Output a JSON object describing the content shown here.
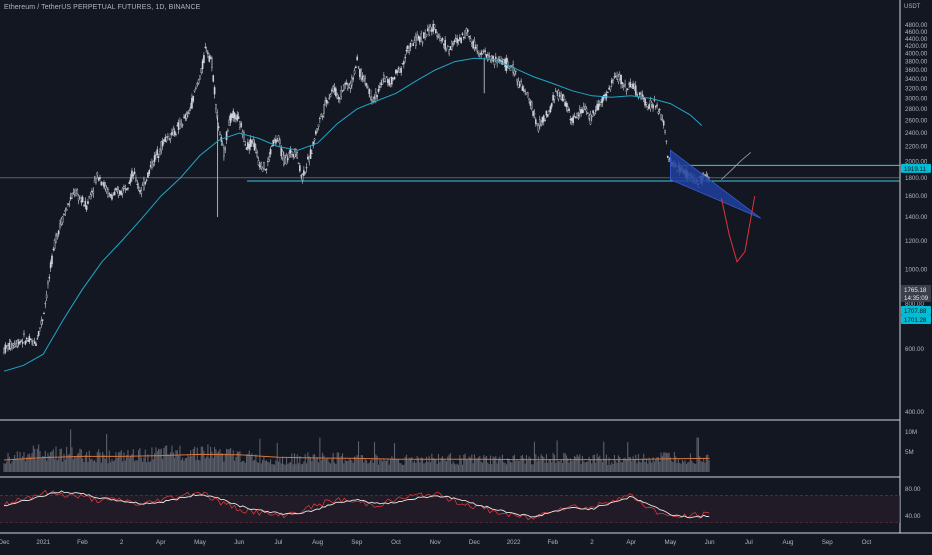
{
  "header": {
    "symbol_title": "Ethereum / TetherUS PERPETUAL FUTURES, 1D, BINANCE",
    "currency_unit": "USDT"
  },
  "colors": {
    "background": "#131722",
    "candle": "#d1d4dc",
    "moving_average": "#1ea7c8",
    "support_line": "#3ec6e8",
    "wedge_fill": "#1e3f9e",
    "projection_down": "#e0323c",
    "projection_up": "#9aa0ac",
    "volume_ma": "#d8753a",
    "rsi_red": "#ef3b3b",
    "rsi_white": "#e6e6e6",
    "rsi_band": "#7a3540",
    "axis_text": "#b2b5be",
    "tag_cyan": "#00bcd4",
    "tag_grey": "#3a3f4b"
  },
  "chart_data": [
    {
      "type": "line",
      "name": "price",
      "y_scale": "log",
      "ylim": [
        400,
        4900
      ],
      "price_ticks": [
        4800,
        4600,
        4400,
        4200,
        4000,
        3800,
        3600,
        3400,
        3200,
        3000,
        2800,
        2600,
        2400,
        2200,
        2000,
        1800,
        1600,
        1400,
        1200,
        1000,
        800,
        600,
        400
      ],
      "price_tick_labels": [
        "4800.00",
        "4600.00",
        "4400.00",
        "4200.00",
        "4000.00",
        "3800.00",
        "3600.00",
        "3400.00",
        "3200.00",
        "3000.00",
        "2800.00",
        "2600.00",
        "2400.00",
        "2200.00",
        "2000.00",
        "1800.00",
        "1600.00",
        "1400.00",
        "1200.00",
        "1000.00",
        "800.00",
        "600.00",
        "400.00"
      ],
      "time_labels": [
        "Dec",
        "2021",
        "Feb",
        "2",
        "Apr",
        "May",
        "Jun",
        "Jul",
        "Aug",
        "Sep",
        "Oct",
        "Nov",
        "Dec",
        "2022",
        "Feb",
        "2",
        "Apr",
        "May",
        "Jun",
        "Jul",
        "Aug",
        "Sep",
        "Oct"
      ],
      "time_label_months": [
        0,
        1,
        2,
        3,
        4,
        5,
        6,
        7,
        8,
        9,
        10,
        11,
        12,
        13,
        14,
        15,
        16,
        17,
        18,
        19,
        20,
        21,
        22
      ],
      "price_path": [
        [
          0.0,
          600
        ],
        [
          0.5,
          640
        ],
        [
          0.8,
          620
        ],
        [
          1.0,
          740
        ],
        [
          1.3,
          1200
        ],
        [
          1.5,
          1400
        ],
        [
          1.8,
          1650
        ],
        [
          2.1,
          1500
        ],
        [
          2.4,
          1850
        ],
        [
          2.7,
          1600
        ],
        [
          3.0,
          1650
        ],
        [
          3.3,
          1850
        ],
        [
          3.5,
          1650
        ],
        [
          3.8,
          2000
        ],
        [
          4.1,
          2300
        ],
        [
          4.4,
          2450
        ],
        [
          4.7,
          2700
        ],
        [
          4.9,
          3200
        ],
        [
          5.05,
          3600
        ],
        [
          5.15,
          4200
        ],
        [
          5.3,
          3800
        ],
        [
          5.45,
          2600
        ],
        [
          5.6,
          2100
        ],
        [
          5.75,
          2600
        ],
        [
          5.9,
          2700
        ],
        [
          6.05,
          2500
        ],
        [
          6.2,
          2200
        ],
        [
          6.35,
          2300
        ],
        [
          6.5,
          2000
        ],
        [
          6.7,
          1900
        ],
        [
          6.85,
          2250
        ],
        [
          7.0,
          2300
        ],
        [
          7.15,
          2000
        ],
        [
          7.3,
          2100
        ],
        [
          7.45,
          2150
        ],
        [
          7.6,
          1800
        ],
        [
          7.8,
          2050
        ],
        [
          8.0,
          2500
        ],
        [
          8.2,
          2900
        ],
        [
          8.4,
          3200
        ],
        [
          8.55,
          3000
        ],
        [
          8.7,
          3300
        ],
        [
          8.85,
          3250
        ],
        [
          9.0,
          3800
        ],
        [
          9.1,
          3500
        ],
        [
          9.25,
          3300
        ],
        [
          9.4,
          3000
        ],
        [
          9.55,
          3100
        ],
        [
          9.7,
          3450
        ],
        [
          9.85,
          3300
        ],
        [
          10.0,
          3500
        ],
        [
          10.15,
          3700
        ],
        [
          10.3,
          4100
        ],
        [
          10.45,
          4300
        ],
        [
          10.6,
          4400
        ],
        [
          10.75,
          4500
        ],
        [
          10.9,
          4700
        ],
        [
          11.05,
          4600
        ],
        [
          11.2,
          4300
        ],
        [
          11.35,
          4100
        ],
        [
          11.5,
          4300
        ],
        [
          11.65,
          4400
        ],
        [
          11.8,
          4650
        ],
        [
          11.95,
          4300
        ],
        [
          12.1,
          4100
        ],
        [
          12.25,
          4000
        ],
        [
          12.4,
          3900
        ],
        [
          12.55,
          3800
        ],
        [
          12.7,
          3850
        ],
        [
          12.85,
          3700
        ],
        [
          13.0,
          3600
        ],
        [
          13.15,
          3300
        ],
        [
          13.3,
          3100
        ],
        [
          13.45,
          2900
        ],
        [
          13.6,
          2500
        ],
        [
          13.75,
          2600
        ],
        [
          13.9,
          2700
        ],
        [
          14.05,
          3100
        ],
        [
          14.2,
          3050
        ],
        [
          14.35,
          2900
        ],
        [
          14.5,
          2600
        ],
        [
          14.65,
          2700
        ],
        [
          14.8,
          2850
        ],
        [
          14.95,
          2600
        ],
        [
          15.1,
          2800
        ],
        [
          15.25,
          2950
        ],
        [
          15.4,
          3100
        ],
        [
          15.55,
          3400
        ],
        [
          15.7,
          3450
        ],
        [
          15.85,
          3200
        ],
        [
          16.0,
          3300
        ],
        [
          16.15,
          3100
        ],
        [
          16.3,
          3000
        ],
        [
          16.45,
          2850
        ],
        [
          16.6,
          2900
        ],
        [
          16.75,
          2700
        ],
        [
          16.85,
          2500
        ],
        [
          16.95,
          2000
        ],
        [
          17.1,
          1950
        ],
        [
          17.25,
          1900
        ],
        [
          17.4,
          1850
        ],
        [
          17.55,
          1800
        ],
        [
          17.7,
          1750
        ],
        [
          17.85,
          1800
        ],
        [
          18.0,
          1765
        ]
      ],
      "moving_average_path": [
        [
          0.0,
          520
        ],
        [
          0.5,
          540
        ],
        [
          1.0,
          580
        ],
        [
          1.5,
          720
        ],
        [
          2.0,
          880
        ],
        [
          2.5,
          1050
        ],
        [
          3.0,
          1200
        ],
        [
          3.5,
          1380
        ],
        [
          4.0,
          1600
        ],
        [
          4.5,
          1800
        ],
        [
          5.0,
          2080
        ],
        [
          5.5,
          2300
        ],
        [
          6.0,
          2400
        ],
        [
          6.5,
          2320
        ],
        [
          7.0,
          2200
        ],
        [
          7.5,
          2150
        ],
        [
          8.0,
          2250
        ],
        [
          8.5,
          2550
        ],
        [
          9.0,
          2800
        ],
        [
          9.5,
          2950
        ],
        [
          10.0,
          3100
        ],
        [
          10.5,
          3350
        ],
        [
          11.0,
          3600
        ],
        [
          11.5,
          3800
        ],
        [
          12.0,
          3880
        ],
        [
          12.5,
          3850
        ],
        [
          13.0,
          3650
        ],
        [
          13.5,
          3450
        ],
        [
          14.0,
          3300
        ],
        [
          14.5,
          3150
        ],
        [
          15.0,
          3050
        ],
        [
          15.5,
          3020
        ],
        [
          16.0,
          3050
        ],
        [
          16.5,
          3000
        ],
        [
          17.0,
          2900
        ],
        [
          17.5,
          2700
        ],
        [
          17.8,
          2520
        ]
      ],
      "support_lines": [
        1765,
        1800
      ],
      "resistance_line": 1950,
      "wedge": [
        [
          17.0,
          2150
        ],
        [
          19.3,
          1390
        ],
        [
          17.0,
          1780
        ]
      ],
      "projection_down": [
        [
          18.3,
          1580
        ],
        [
          18.5,
          1250
        ],
        [
          18.7,
          1050
        ],
        [
          18.9,
          1120
        ],
        [
          19.15,
          1600
        ]
      ],
      "projection_up": [
        [
          18.3,
          1780
        ],
        [
          18.55,
          1890
        ],
        [
          18.8,
          2010
        ],
        [
          19.05,
          2120
        ]
      ],
      "tags": [
        {
          "value": 1919.11,
          "text": "1919.11",
          "style": "cyan"
        },
        {
          "value": 1765.18,
          "text": "1765.18",
          "style": "grey"
        },
        {
          "value": 1745.0,
          "text": "14:35:09",
          "style": "grey"
        },
        {
          "value": 1707.88,
          "text": "1707.88",
          "style": "cyan"
        },
        {
          "value": 1701.28,
          "text": "1701.28",
          "style": "cyan"
        }
      ]
    },
    {
      "type": "bar",
      "name": "volume",
      "y_ticks": [
        10000000,
        5000000
      ],
      "y_tick_labels": [
        "10M",
        "5M"
      ],
      "volume_months": [
        0,
        1,
        2,
        3,
        4,
        5,
        6,
        7,
        8,
        9,
        10,
        11,
        12,
        13,
        14,
        15,
        16,
        17,
        18
      ],
      "volume_values": [
        3500000,
        5000000,
        4200000,
        3800000,
        4500000,
        5200000,
        4000000,
        3000000,
        3600000,
        3200000,
        3000000,
        3400000,
        3100000,
        3000000,
        3300000,
        3200000,
        3100000,
        3800000,
        3500000
      ],
      "volume_ma": [
        3000000,
        3600000,
        3900000,
        3900000,
        4100000,
        4400000,
        4300000,
        3700000,
        3500000,
        3400000,
        3200000,
        3200000,
        3200000,
        3100000,
        3100000,
        3100000,
        3100000,
        3300000,
        3400000
      ]
    },
    {
      "type": "line",
      "name": "oscillator",
      "y_ticks": [
        80,
        40
      ],
      "y_tick_labels": [
        "80.00",
        "40.00"
      ],
      "band": [
        70,
        30
      ],
      "white_path": [
        [
          0.0,
          55
        ],
        [
          0.5,
          62
        ],
        [
          1.0,
          70
        ],
        [
          1.5,
          76
        ],
        [
          2.0,
          72
        ],
        [
          2.5,
          66
        ],
        [
          3.0,
          62
        ],
        [
          3.5,
          58
        ],
        [
          4.0,
          60
        ],
        [
          4.5,
          66
        ],
        [
          5.0,
          72
        ],
        [
          5.5,
          66
        ],
        [
          6.0,
          55
        ],
        [
          6.5,
          48
        ],
        [
          7.0,
          44
        ],
        [
          7.5,
          42
        ],
        [
          8.0,
          50
        ],
        [
          8.5,
          60
        ],
        [
          9.0,
          64
        ],
        [
          9.5,
          58
        ],
        [
          10.0,
          60
        ],
        [
          10.5,
          66
        ],
        [
          11.0,
          70
        ],
        [
          11.5,
          66
        ],
        [
          12.0,
          58
        ],
        [
          12.5,
          50
        ],
        [
          13.0,
          44
        ],
        [
          13.5,
          38
        ],
        [
          14.0,
          46
        ],
        [
          14.5,
          52
        ],
        [
          15.0,
          50
        ],
        [
          15.5,
          60
        ],
        [
          16.0,
          68
        ],
        [
          16.5,
          56
        ],
        [
          17.0,
          42
        ],
        [
          17.5,
          38
        ],
        [
          18.0,
          40
        ]
      ],
      "red_path": [
        [
          0.0,
          58
        ],
        [
          0.5,
          66
        ],
        [
          1.0,
          74
        ],
        [
          1.5,
          72
        ],
        [
          2.0,
          68
        ],
        [
          2.5,
          62
        ],
        [
          3.0,
          64
        ],
        [
          3.5,
          56
        ],
        [
          4.0,
          64
        ],
        [
          4.5,
          70
        ],
        [
          5.0,
          76
        ],
        [
          5.5,
          60
        ],
        [
          6.0,
          50
        ],
        [
          6.5,
          45
        ],
        [
          7.0,
          40
        ],
        [
          7.5,
          46
        ],
        [
          8.0,
          56
        ],
        [
          8.5,
          64
        ],
        [
          9.0,
          60
        ],
        [
          9.5,
          56
        ],
        [
          10.0,
          64
        ],
        [
          10.5,
          70
        ],
        [
          11.0,
          72
        ],
        [
          11.5,
          62
        ],
        [
          12.0,
          54
        ],
        [
          12.5,
          46
        ],
        [
          13.0,
          40
        ],
        [
          13.5,
          36
        ],
        [
          14.0,
          50
        ],
        [
          14.5,
          54
        ],
        [
          15.0,
          52
        ],
        [
          15.5,
          64
        ],
        [
          16.0,
          70
        ],
        [
          16.5,
          50
        ],
        [
          17.0,
          38
        ],
        [
          17.5,
          40
        ],
        [
          18.0,
          42
        ]
      ]
    }
  ]
}
